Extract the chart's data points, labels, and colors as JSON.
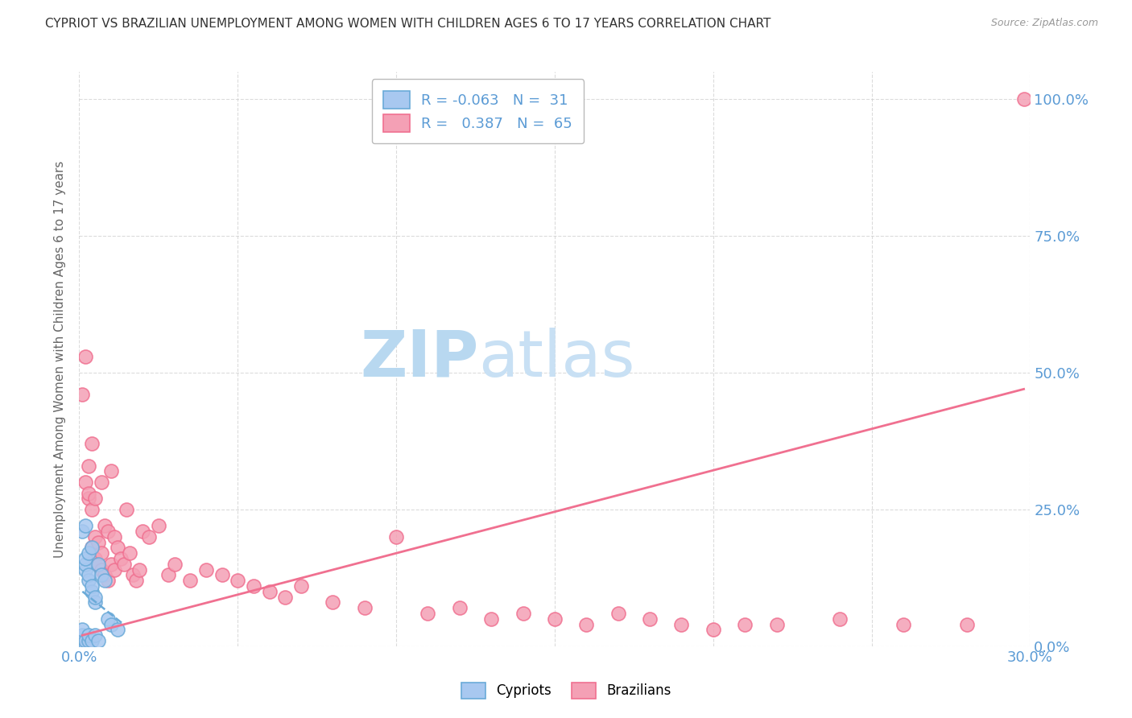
{
  "title": "CYPRIOT VS BRAZILIAN UNEMPLOYMENT AMONG WOMEN WITH CHILDREN AGES 6 TO 17 YEARS CORRELATION CHART",
  "source": "Source: ZipAtlas.com",
  "ylabel": "Unemployment Among Women with Children Ages 6 to 17 years",
  "xmin": 0.0,
  "xmax": 0.3,
  "ymin": 0.0,
  "ymax": 1.05,
  "xticks": [
    0.0,
    0.05,
    0.1,
    0.15,
    0.2,
    0.25,
    0.3
  ],
  "yticks": [
    0.0,
    0.25,
    0.5,
    0.75,
    1.0
  ],
  "ytick_labels": [
    "0.0%",
    "25.0%",
    "50.0%",
    "75.0%",
    "100.0%"
  ],
  "legend_r_cypriot": "-0.063",
  "legend_n_cypriot": "31",
  "legend_r_brazilian": "0.387",
  "legend_n_brazilian": "65",
  "cypriot_color": "#a8c8f0",
  "brazilian_color": "#f4a0b5",
  "trendline_cypriot_color": "#6aaad8",
  "trendline_brazilian_color": "#f07090",
  "background_color": "#ffffff",
  "watermark_zip": "ZIP",
  "watermark_atlas": "atlas",
  "watermark_color_zip": "#b8d8f0",
  "watermark_color_atlas": "#c8e0f4",
  "cypriot_x": [
    0.001,
    0.001,
    0.001,
    0.001,
    0.001,
    0.001,
    0.002,
    0.002,
    0.002,
    0.002,
    0.002,
    0.002,
    0.003,
    0.003,
    0.003,
    0.003,
    0.003,
    0.004,
    0.004,
    0.004,
    0.004,
    0.005,
    0.005,
    0.005,
    0.006,
    0.006,
    0.007,
    0.008,
    0.009,
    0.01,
    0.012
  ],
  "cypriot_y": [
    0.0,
    0.0,
    0.01,
    0.02,
    0.03,
    0.21,
    0.0,
    0.01,
    0.14,
    0.15,
    0.16,
    0.22,
    0.01,
    0.02,
    0.12,
    0.13,
    0.17,
    0.01,
    0.1,
    0.11,
    0.18,
    0.02,
    0.08,
    0.09,
    0.01,
    0.15,
    0.13,
    0.12,
    0.05,
    0.04,
    0.03
  ],
  "brazilian_x": [
    0.001,
    0.002,
    0.002,
    0.003,
    0.003,
    0.003,
    0.004,
    0.004,
    0.004,
    0.005,
    0.005,
    0.005,
    0.006,
    0.006,
    0.007,
    0.007,
    0.007,
    0.008,
    0.008,
    0.009,
    0.009,
    0.01,
    0.01,
    0.011,
    0.011,
    0.012,
    0.013,
    0.014,
    0.015,
    0.016,
    0.017,
    0.018,
    0.019,
    0.02,
    0.022,
    0.025,
    0.028,
    0.03,
    0.035,
    0.04,
    0.045,
    0.05,
    0.055,
    0.06,
    0.065,
    0.07,
    0.08,
    0.09,
    0.1,
    0.11,
    0.12,
    0.13,
    0.14,
    0.15,
    0.16,
    0.17,
    0.18,
    0.19,
    0.2,
    0.21,
    0.22,
    0.24,
    0.26,
    0.28,
    0.298
  ],
  "brazilian_y": [
    0.46,
    0.3,
    0.53,
    0.27,
    0.28,
    0.33,
    0.18,
    0.25,
    0.37,
    0.16,
    0.2,
    0.27,
    0.15,
    0.19,
    0.14,
    0.17,
    0.3,
    0.13,
    0.22,
    0.12,
    0.21,
    0.15,
    0.32,
    0.14,
    0.2,
    0.18,
    0.16,
    0.15,
    0.25,
    0.17,
    0.13,
    0.12,
    0.14,
    0.21,
    0.2,
    0.22,
    0.13,
    0.15,
    0.12,
    0.14,
    0.13,
    0.12,
    0.11,
    0.1,
    0.09,
    0.11,
    0.08,
    0.07,
    0.2,
    0.06,
    0.07,
    0.05,
    0.06,
    0.05,
    0.04,
    0.06,
    0.05,
    0.04,
    0.03,
    0.04,
    0.04,
    0.05,
    0.04,
    0.04,
    1.0
  ],
  "trendline_braz_x0": 0.001,
  "trendline_braz_x1": 0.298,
  "trendline_braz_y0": 0.02,
  "trendline_braz_y1": 0.47,
  "trendline_cyp_x0": 0.001,
  "trendline_cyp_x1": 0.014,
  "trendline_cyp_y0": 0.1,
  "trendline_cyp_y1": 0.04
}
